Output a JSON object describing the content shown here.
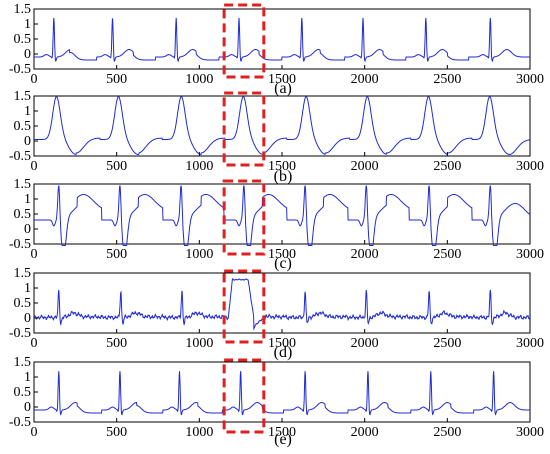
{
  "chart_data": [
    {
      "type": "line",
      "panel_label": "(a)",
      "series_color": "#1f2bd6",
      "x_ticks": [
        "0",
        "500",
        "1000",
        "1500",
        "2000",
        "2500",
        "3000"
      ],
      "y_ticks": [
        "-0.5",
        "0",
        "0.5",
        "1",
        "1.5"
      ],
      "xlim": [
        0,
        3000
      ],
      "ylim": [
        -0.5,
        1.5
      ],
      "highlight_x_range": [
        1150,
        1390
      ],
      "highlight_color": "#e02020",
      "beat_times": [
        120,
        475,
        860,
        1240,
        1620,
        1990,
        2370,
        2760
      ],
      "beat_morphology": "normal sinus (narrow QRS ~1.2, small P and T waves)"
    },
    {
      "type": "line",
      "panel_label": "(b)",
      "series_color": "#1f2bd6",
      "x_ticks": [
        "0",
        "500",
        "1000",
        "1500",
        "2000",
        "2500",
        "3000"
      ],
      "y_ticks": [
        "-0.5",
        "0",
        "0.5",
        "1",
        "1.5"
      ],
      "xlim": [
        0,
        3000
      ],
      "ylim": [
        -0.5,
        1.5
      ],
      "highlight_x_range": [
        1150,
        1390
      ],
      "highlight_color": "#e02020",
      "beat_times": [
        140,
        515,
        895,
        1270,
        1650,
        2020,
        2390,
        2760
      ],
      "beat_morphology": "broad rounded complexes (~1.2) with negative troughs (~-0.45)"
    },
    {
      "type": "line",
      "panel_label": "(c)",
      "series_color": "#1f2bd6",
      "x_ticks": [
        "0",
        "500",
        "1000",
        "1500",
        "2000",
        "2500",
        "3000"
      ],
      "y_ticks": [
        "-0.5",
        "0",
        "0.5",
        "1",
        "1.5"
      ],
      "xlim": [
        0,
        3000
      ],
      "ylim": [
        -0.5,
        1.5
      ],
      "highlight_x_range": [
        1150,
        1390
      ],
      "highlight_color": "#e02020",
      "beat_times": [
        150,
        520,
        890,
        1270,
        1640,
        2010,
        2390,
        2760
      ],
      "beat_morphology": "spike (~1.1) followed by deep negative wave (~-0.45) and broad positive T (~0.8)"
    },
    {
      "type": "line",
      "panel_label": "(d)",
      "series_color": "#1f2bd6",
      "x_ticks": [
        "0",
        "500",
        "1000",
        "1500",
        "2000",
        "2500",
        "3000"
      ],
      "y_ticks": [
        "-0.5",
        "0",
        "0.5",
        "1",
        "1.5"
      ],
      "xlim": [
        0,
        3000
      ],
      "ylim": [
        -0.5,
        1.5
      ],
      "highlight_x_range": [
        1150,
        1390
      ],
      "highlight_color": "#e02020",
      "beat_times": [
        150,
        525,
        895,
        1270,
        1640,
        2010,
        2390,
        2760
      ],
      "beat_morphology": "normal beats (~0.8) with noisy baseline; wide abnormal plateau (~1.3) inside highlighted window"
    },
    {
      "type": "line",
      "panel_label": "(e)",
      "series_color": "#1f2bd6",
      "x_ticks": [
        "0",
        "500",
        "1000",
        "1500",
        "2000",
        "2500",
        "3000"
      ],
      "y_ticks": [
        "-0.5",
        "0",
        "0.5",
        "1",
        "1.5"
      ],
      "xlim": [
        0,
        3000
      ],
      "ylim": [
        -0.5,
        1.5
      ],
      "highlight_x_range": [
        1150,
        1390
      ],
      "highlight_color": "#e02020",
      "beat_times": [
        150,
        520,
        880,
        1250,
        1640,
        2020,
        2400,
        2780
      ],
      "beat_morphology": "normal sinus (narrow QRS ~1.2, small P and T waves)"
    }
  ]
}
